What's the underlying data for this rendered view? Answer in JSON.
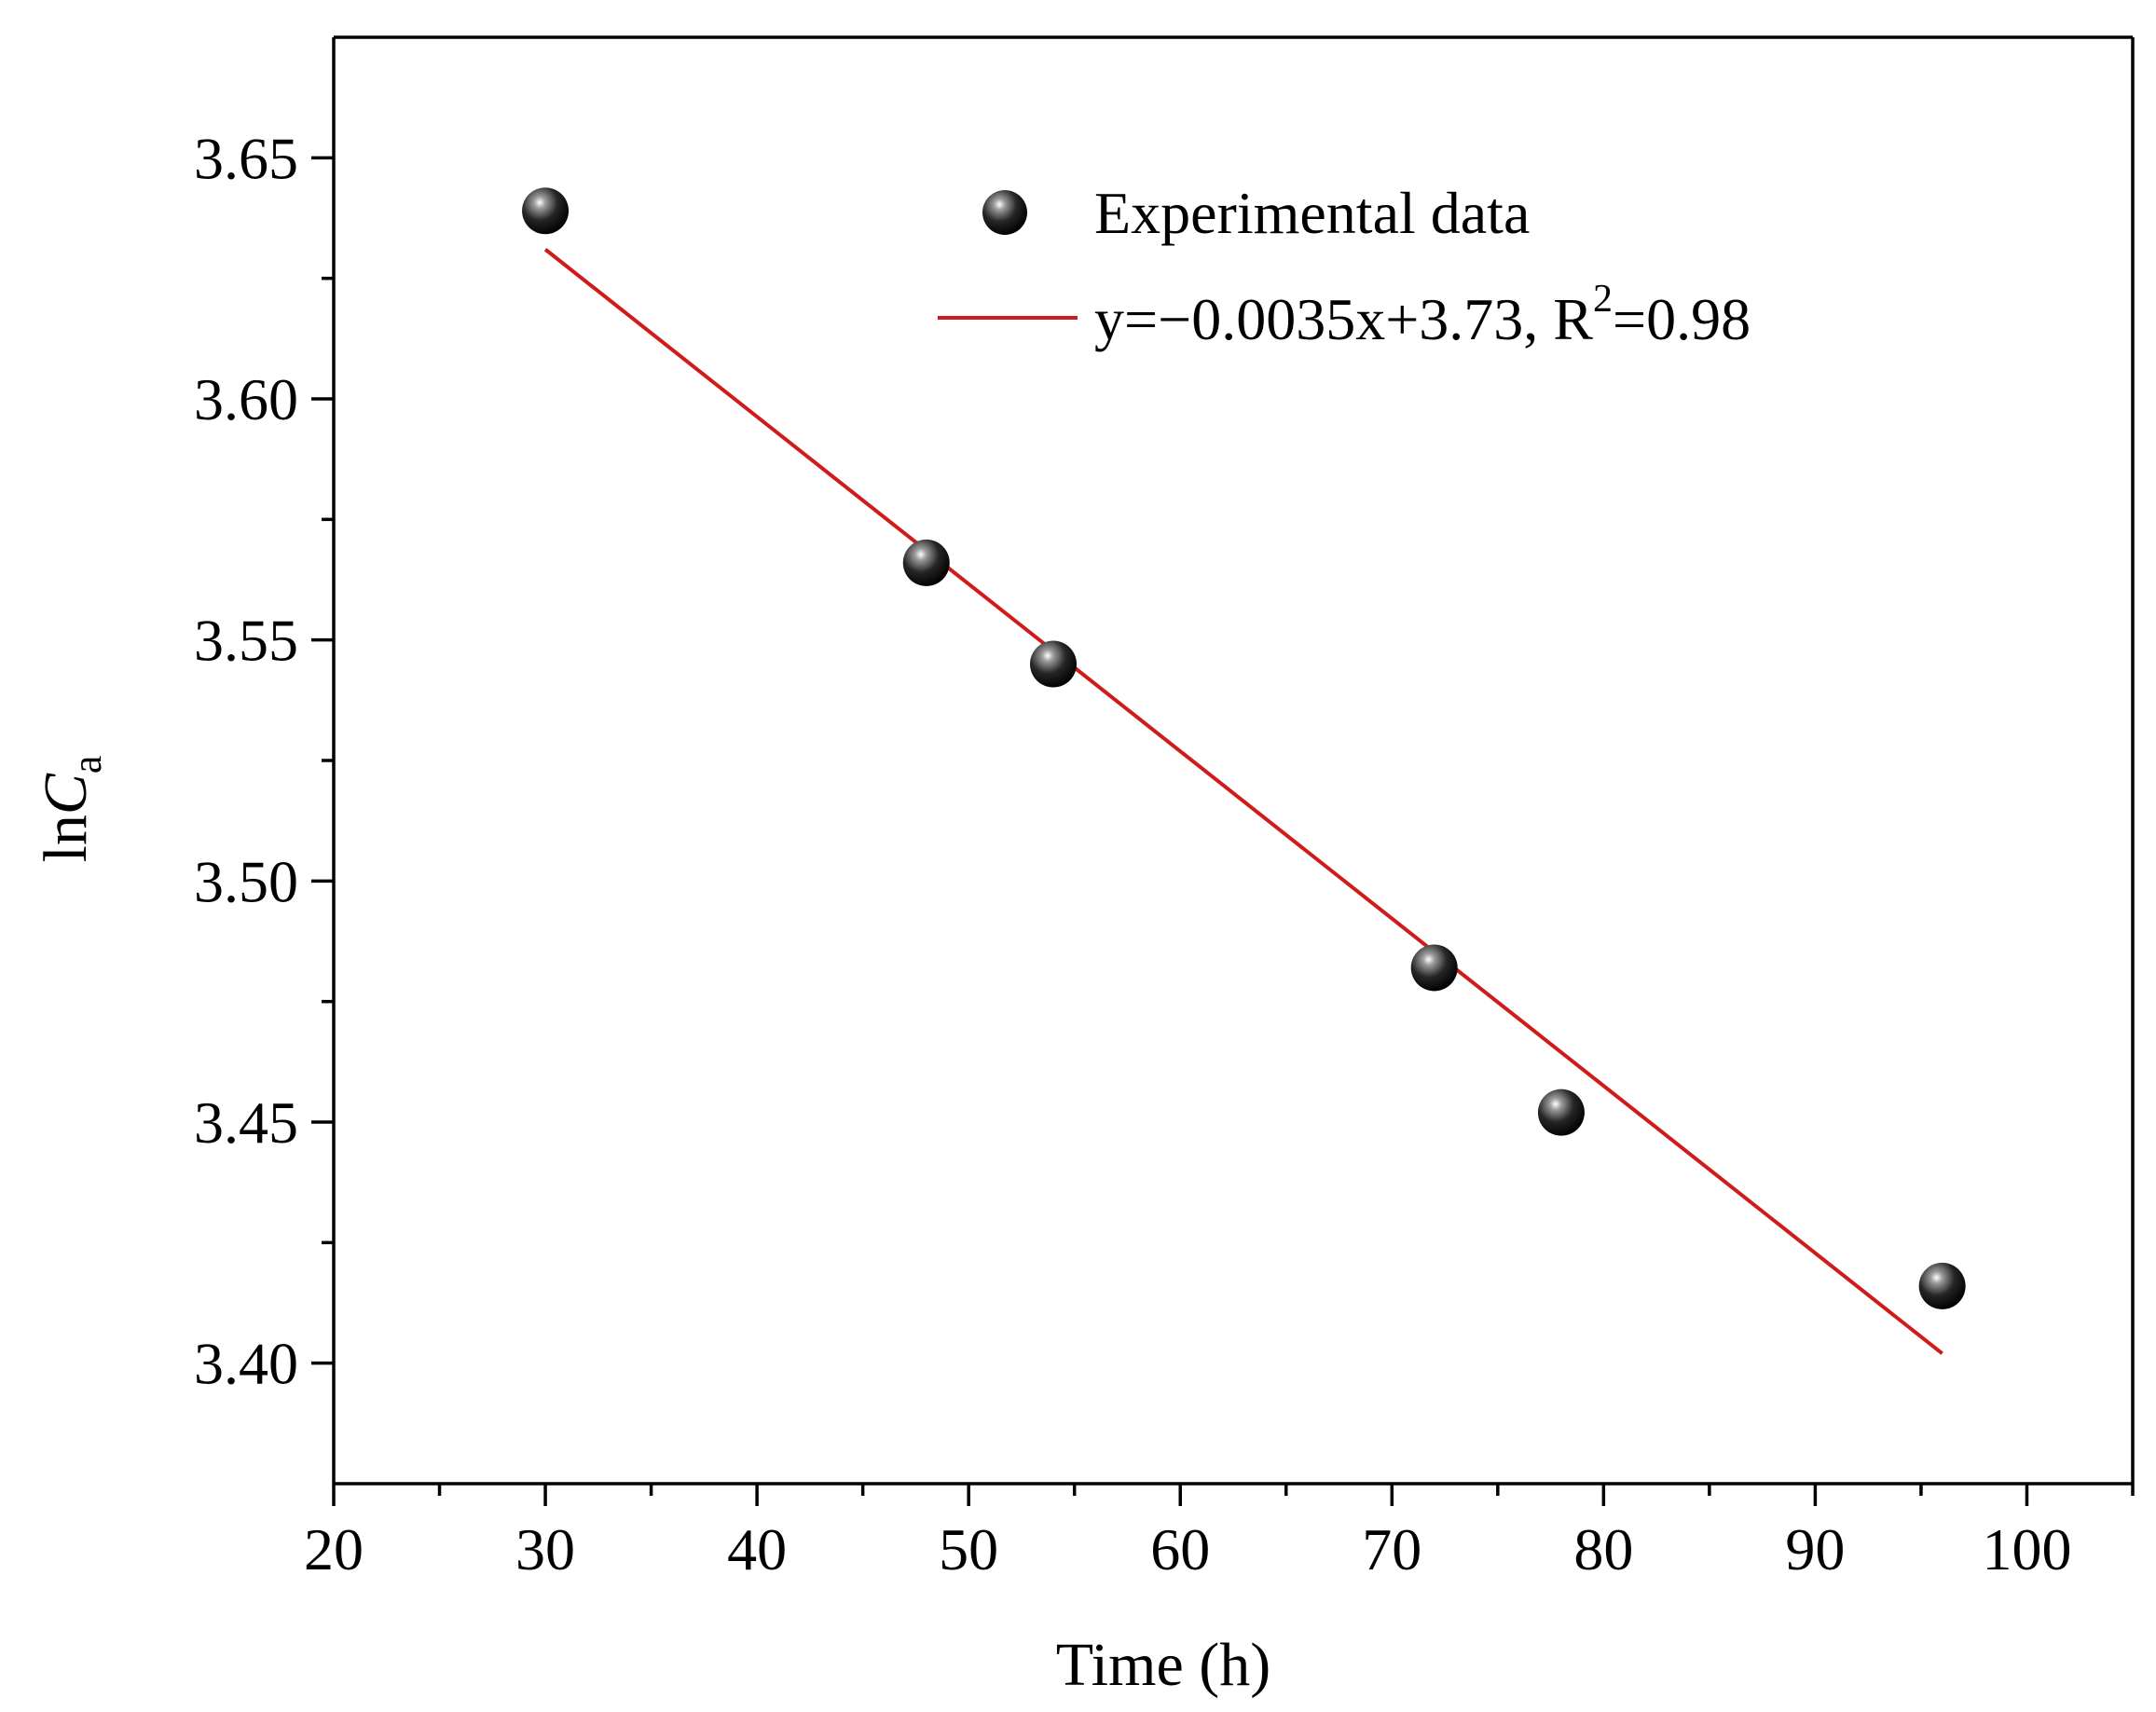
{
  "chart_data": {
    "type": "scatter",
    "xlabel": "Time (h)",
    "ylabel": {
      "prefix": "ln",
      "symbol": "C",
      "subscript": "a"
    },
    "xlim": [
      20,
      105
    ],
    "ylim": [
      3.375,
      3.675
    ],
    "x_ticks_major": [
      20,
      30,
      40,
      50,
      60,
      70,
      80,
      90,
      100
    ],
    "x_tick_labels": [
      "20",
      "30",
      "40",
      "50",
      "60",
      "70",
      "80",
      "90",
      "100"
    ],
    "x_ticks_minor": [
      25,
      35,
      45,
      55,
      65,
      75,
      85,
      95,
      105
    ],
    "y_ticks_major": [
      3.4,
      3.45,
      3.5,
      3.55,
      3.6,
      3.65
    ],
    "y_tick_labels": [
      "3.40",
      "3.45",
      "3.50",
      "3.55",
      "3.60",
      "3.65"
    ],
    "y_ticks_minor": [
      3.425,
      3.475,
      3.525,
      3.575,
      3.625
    ],
    "grid": false,
    "legend_position": "top-right",
    "series": [
      {
        "name": "Experimental data",
        "kind": "scatter",
        "x": [
          30,
          48,
          54,
          72,
          78,
          96
        ],
        "y": [
          3.639,
          3.566,
          3.545,
          3.482,
          3.452,
          3.416
        ],
        "color": "#111111"
      },
      {
        "name": "y=−0.0035x+3.73, R",
        "name_superscript": "2",
        "name_tail": "=0.98",
        "kind": "line",
        "x": [
          30,
          96
        ],
        "y": [
          3.631,
          3.402
        ],
        "color": "#d11a1a"
      }
    ]
  }
}
